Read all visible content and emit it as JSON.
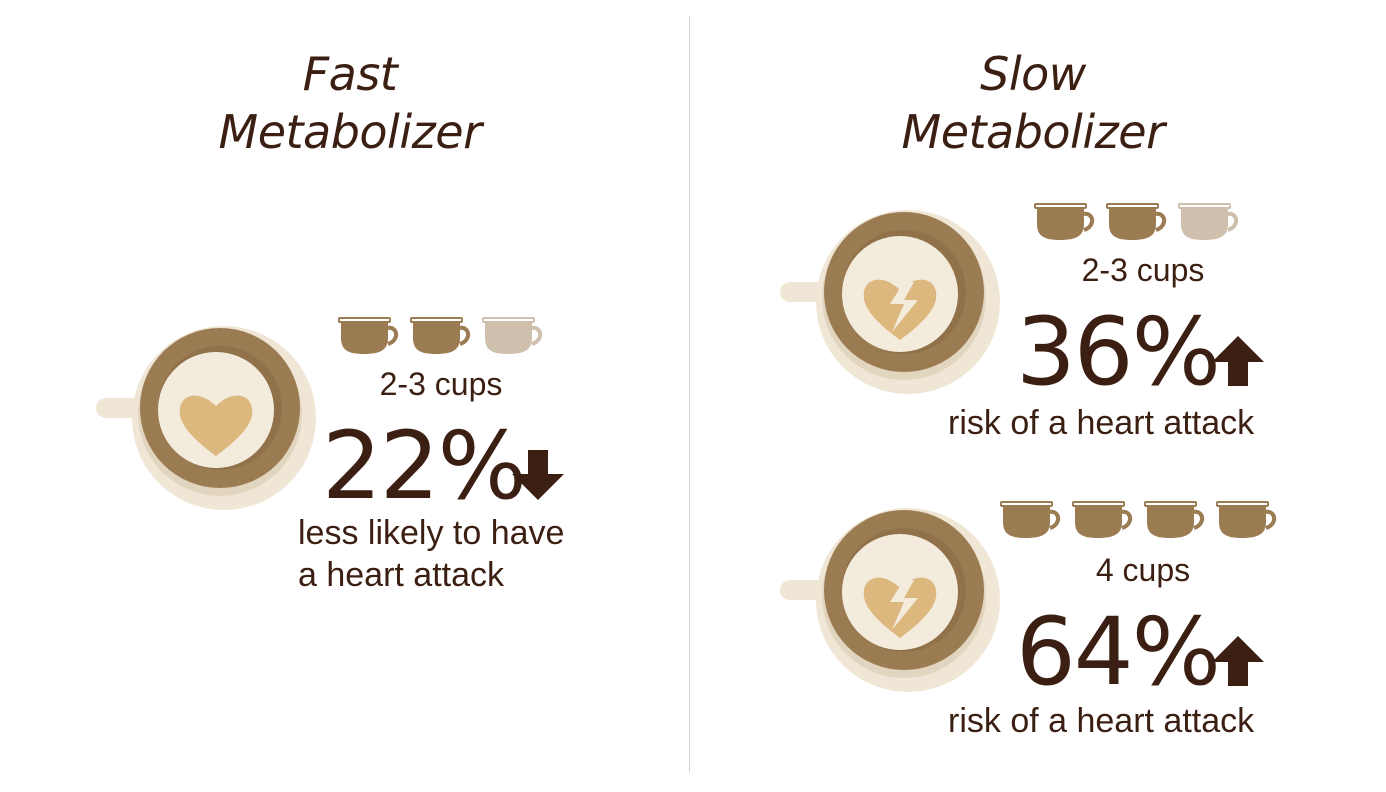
{
  "left": {
    "title_line1": "Fast",
    "title_line2": "Metabolizer",
    "cups_label": "2-3 cups",
    "percent": "22%",
    "arrow": "down-arrow-icon",
    "desc_line1": "less likely to have",
    "desc_line2": "a heart attack",
    "heart_icon": "heart-icon"
  },
  "right": {
    "title_line1": "Slow",
    "title_line2": "Metabolizer",
    "panels": [
      {
        "cups_label": "2-3 cups",
        "percent": "36%",
        "arrow": "up-arrow-icon",
        "desc": "risk of a heart attack",
        "heart_icon": "broken-heart-icon"
      },
      {
        "cups_label": "4 cups",
        "percent": "64%",
        "arrow": "up-arrow-icon",
        "desc": "risk of a heart attack",
        "heart_icon": "broken-heart-icon"
      }
    ]
  },
  "colors": {
    "text": "#3b1f12",
    "coffee": "#9b7b52",
    "cup_faded": "#cfc0ae",
    "saucer": "#efe6d6",
    "heart": "#dcb77e"
  }
}
